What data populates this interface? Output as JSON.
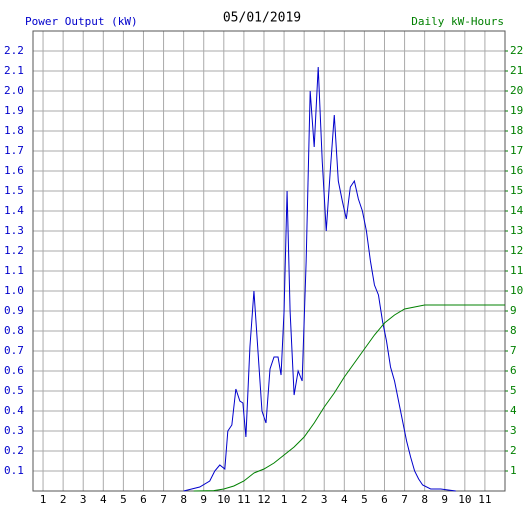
{
  "chart_data": {
    "type": "line",
    "title": "05/01/2019",
    "y_label": "Power Output (kW)",
    "y2_label": "Daily kW-Hours",
    "y_label_color": "#0000cc",
    "y2_label_color": "#008000",
    "grid": true,
    "xlim": [
      0.5,
      24
    ],
    "xticks": [
      1,
      2,
      3,
      4,
      5,
      6,
      7,
      8,
      9,
      10,
      11,
      12,
      {
        "value": 13,
        "label": "1"
      },
      {
        "value": 14,
        "label": "2"
      },
      {
        "value": 15,
        "label": "3"
      },
      {
        "value": 16,
        "label": "4"
      },
      {
        "value": 17,
        "label": "5"
      },
      {
        "value": 18,
        "label": "6"
      },
      {
        "value": 19,
        "label": "7"
      },
      {
        "value": 20,
        "label": "8"
      },
      {
        "value": 21,
        "label": "9"
      },
      {
        "value": 22,
        "label": "10"
      },
      {
        "value": 23,
        "label": "11"
      }
    ],
    "ylim": [
      0,
      2.3
    ],
    "yticks": [
      0.1,
      0.2,
      0.3,
      0.4,
      0.5,
      0.6,
      0.7,
      0.8,
      0.9,
      {
        "value": 1,
        "label": "1.0"
      },
      1.1,
      1.2,
      1.3,
      1.4,
      1.5,
      1.6,
      1.7,
      1.8,
      1.9,
      {
        "value": 2,
        "label": "2.0"
      },
      2.1,
      2.2
    ],
    "y2lim": [
      0,
      23
    ],
    "y2ticks": [
      1,
      2,
      3,
      4,
      5,
      6,
      7,
      8,
      9,
      10,
      11,
      12,
      13,
      14,
      15,
      16,
      17,
      18,
      19,
      20,
      21,
      22
    ],
    "series": [
      {
        "name": "Power Output (kW)",
        "color": "#0000cc",
        "axis": "y",
        "x": [
          8.0,
          8.8,
          9.3,
          9.55,
          9.8,
          10.05,
          10.2,
          10.4,
          10.6,
          10.8,
          10.95,
          11.1,
          11.3,
          11.5,
          11.7,
          11.9,
          12.1,
          12.3,
          12.5,
          12.7,
          12.85,
          13.0,
          13.15,
          13.3,
          13.5,
          13.7,
          13.9,
          14.1,
          14.3,
          14.5,
          14.7,
          14.9,
          15.1,
          15.3,
          15.5,
          15.7,
          15.9,
          16.1,
          16.3,
          16.5,
          16.7,
          16.9,
          17.1,
          17.3,
          17.5,
          17.7,
          17.9,
          18.1,
          18.3,
          18.5,
          18.7,
          18.9,
          19.1,
          19.3,
          19.5,
          19.7,
          19.9,
          20.3,
          20.8,
          21.55
        ],
        "values": [
          0,
          0.02,
          0.05,
          0.1,
          0.13,
          0.11,
          0.3,
          0.33,
          0.51,
          0.45,
          0.44,
          0.27,
          0.72,
          1.0,
          0.7,
          0.4,
          0.34,
          0.61,
          0.67,
          0.67,
          0.58,
          0.9,
          1.5,
          0.9,
          0.48,
          0.6,
          0.55,
          1.15,
          2.0,
          1.72,
          2.12,
          1.65,
          1.3,
          1.6,
          1.88,
          1.55,
          1.45,
          1.36,
          1.52,
          1.55,
          1.46,
          1.4,
          1.3,
          1.15,
          1.03,
          0.98,
          0.85,
          0.75,
          0.62,
          0.55,
          0.45,
          0.35,
          0.25,
          0.17,
          0.1,
          0.06,
          0.03,
          0.01,
          0.01,
          0
        ]
      },
      {
        "name": "Daily kW-Hours",
        "color": "#008000",
        "axis": "y2",
        "x": [
          8.5,
          9.5,
          10.0,
          10.5,
          11.0,
          11.5,
          12.0,
          12.5,
          13.0,
          13.5,
          14.0,
          14.5,
          15.0,
          15.5,
          16.0,
          16.5,
          17.0,
          17.5,
          18.0,
          18.5,
          19.0,
          19.5,
          20.0,
          21.0,
          24.0
        ],
        "values": [
          0,
          0.02,
          0.1,
          0.25,
          0.5,
          0.9,
          1.1,
          1.4,
          1.8,
          2.2,
          2.7,
          3.4,
          4.2,
          4.9,
          5.7,
          6.4,
          7.1,
          7.8,
          8.4,
          8.8,
          9.1,
          9.2,
          9.3,
          9.3,
          9.3
        ]
      }
    ]
  }
}
